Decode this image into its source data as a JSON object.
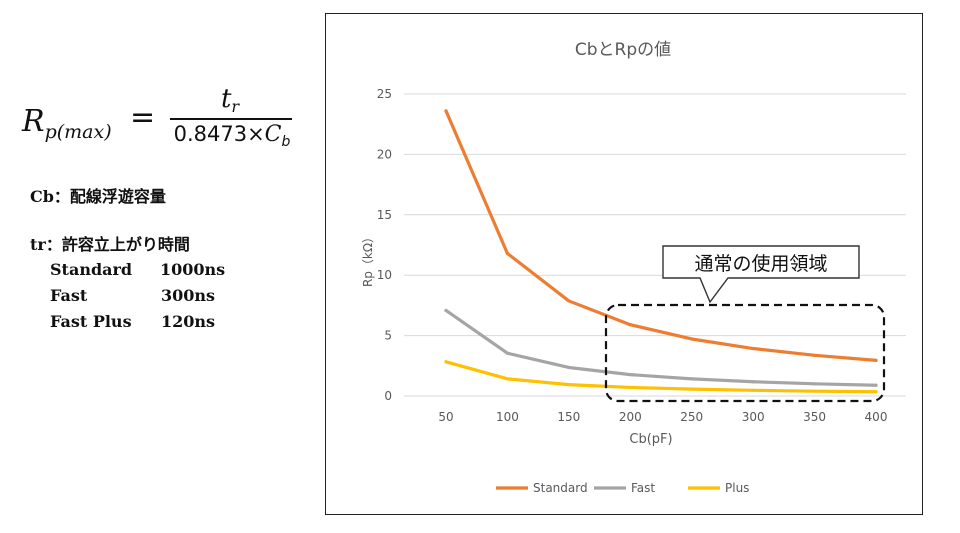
{
  "formula": {
    "lhs_main": "R",
    "lhs_sub": "p(max)",
    "equals": "=",
    "numerator_main": "t",
    "numerator_sub": "r",
    "denominator_coef": "0.8473×",
    "denominator_main": "C",
    "denominator_sub": "b"
  },
  "notes": {
    "cb_line": "Cb：配線浮遊容量",
    "tr_line": "tr：許容立上がり時間"
  },
  "timing": [
    {
      "name": "Standard",
      "value": "1000ns"
    },
    {
      "name": "Fast",
      "value": "300ns"
    },
    {
      "name": "Fast Plus",
      "value": "120ns"
    }
  ],
  "colors": {
    "standard": "#ED7D31",
    "fast": "#A5A5A5",
    "plus": "#FFC000",
    "grid": "#D9D9D9",
    "axis_text": "#595959"
  },
  "callout": {
    "label": "通常の使用領域"
  },
  "chart_data": {
    "type": "line",
    "title": "CbとRpの値",
    "xlabel": "Cb(pF)",
    "ylabel": "Rp（kΩ）",
    "categories": [
      "50",
      "100",
      "150",
      "200",
      "250",
      "300",
      "350",
      "400"
    ],
    "x": [
      50,
      100,
      150,
      200,
      250,
      300,
      350,
      400
    ],
    "ylim": [
      0,
      25
    ],
    "yticks": [
      "0",
      "5",
      "10",
      "15",
      "20",
      "25"
    ],
    "ytick_values": [
      0,
      5,
      10,
      15,
      20,
      25
    ],
    "grid": true,
    "legend_position": "bottom",
    "series": [
      {
        "name": "Standard",
        "color": "#ED7D31",
        "values": [
          23.6,
          11.8,
          7.87,
          5.9,
          4.72,
          3.93,
          3.37,
          2.95
        ]
      },
      {
        "name": "Fast",
        "color": "#A5A5A5",
        "values": [
          7.08,
          3.54,
          2.36,
          1.77,
          1.42,
          1.18,
          1.01,
          0.89
        ]
      },
      {
        "name": "Plus",
        "color": "#FFC000",
        "values": [
          2.83,
          1.42,
          0.94,
          0.71,
          0.57,
          0.47,
          0.4,
          0.35
        ]
      }
    ]
  }
}
